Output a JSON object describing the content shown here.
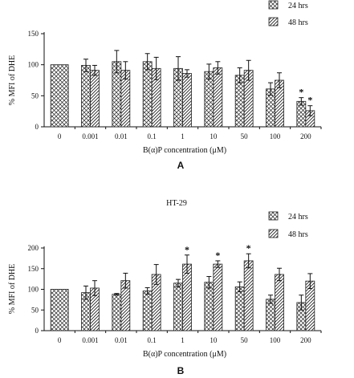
{
  "colors": {
    "ink": "#111111",
    "bar_fill": "#ffffff"
  },
  "legend": {
    "series_a_label": "24 hrs",
    "series_b_label": "48 hrs"
  },
  "chart_data": [
    {
      "type": "bar",
      "panel_label": "A",
      "title": "",
      "xlabel": "B(α)P concentration (μM)",
      "ylabel": "% MFI of DHE",
      "ylim": [
        0,
        150
      ],
      "yticks": [
        0,
        50,
        100,
        150
      ],
      "categories": [
        "0",
        "0.001",
        "0.01",
        "0.1",
        "1",
        "10",
        "50",
        "100",
        "200"
      ],
      "series": [
        {
          "name": "24 hrs",
          "pattern": "crosshatch",
          "values": [
            100,
            99,
            105,
            105,
            94,
            89,
            83,
            61,
            41
          ],
          "errors": [
            0,
            10,
            18,
            13,
            19,
            12,
            12,
            10,
            6
          ],
          "stars": [
            false,
            false,
            false,
            false,
            false,
            false,
            false,
            false,
            true
          ]
        },
        {
          "name": "48 hrs",
          "pattern": "diagonal",
          "values": [
            null,
            91,
            91,
            94,
            86,
            95,
            91,
            75,
            26
          ],
          "errors": [
            0,
            8,
            14,
            18,
            6,
            10,
            16,
            12,
            8
          ],
          "stars": [
            false,
            false,
            false,
            false,
            false,
            false,
            false,
            false,
            true
          ]
        }
      ]
    },
    {
      "type": "bar",
      "panel_label": "B",
      "title": "HT-29",
      "xlabel": "B(α)P concentration (μM)",
      "ylabel": "% MFI of DHE",
      "ylim": [
        0,
        200
      ],
      "yticks": [
        0,
        50,
        100,
        150,
        200
      ],
      "categories": [
        "0",
        "0.001",
        "0.01",
        "0.1",
        "1",
        "10",
        "50",
        "100",
        "200"
      ],
      "series": [
        {
          "name": "24 hrs",
          "pattern": "crosshatch",
          "values": [
            100,
            92,
            88,
            96,
            115,
            117,
            106,
            76,
            68
          ],
          "errors": [
            0,
            16,
            2,
            8,
            9,
            14,
            12,
            10,
            18
          ],
          "stars": [
            false,
            false,
            false,
            false,
            false,
            false,
            false,
            false,
            false
          ]
        },
        {
          "name": "48 hrs",
          "pattern": "diagonal",
          "values": [
            null,
            103,
            121,
            136,
            161,
            161,
            169,
            136,
            120
          ],
          "errors": [
            0,
            18,
            18,
            24,
            22,
            8,
            17,
            15,
            18
          ],
          "stars": [
            false,
            false,
            false,
            false,
            true,
            true,
            true,
            false,
            false
          ]
        }
      ]
    }
  ]
}
